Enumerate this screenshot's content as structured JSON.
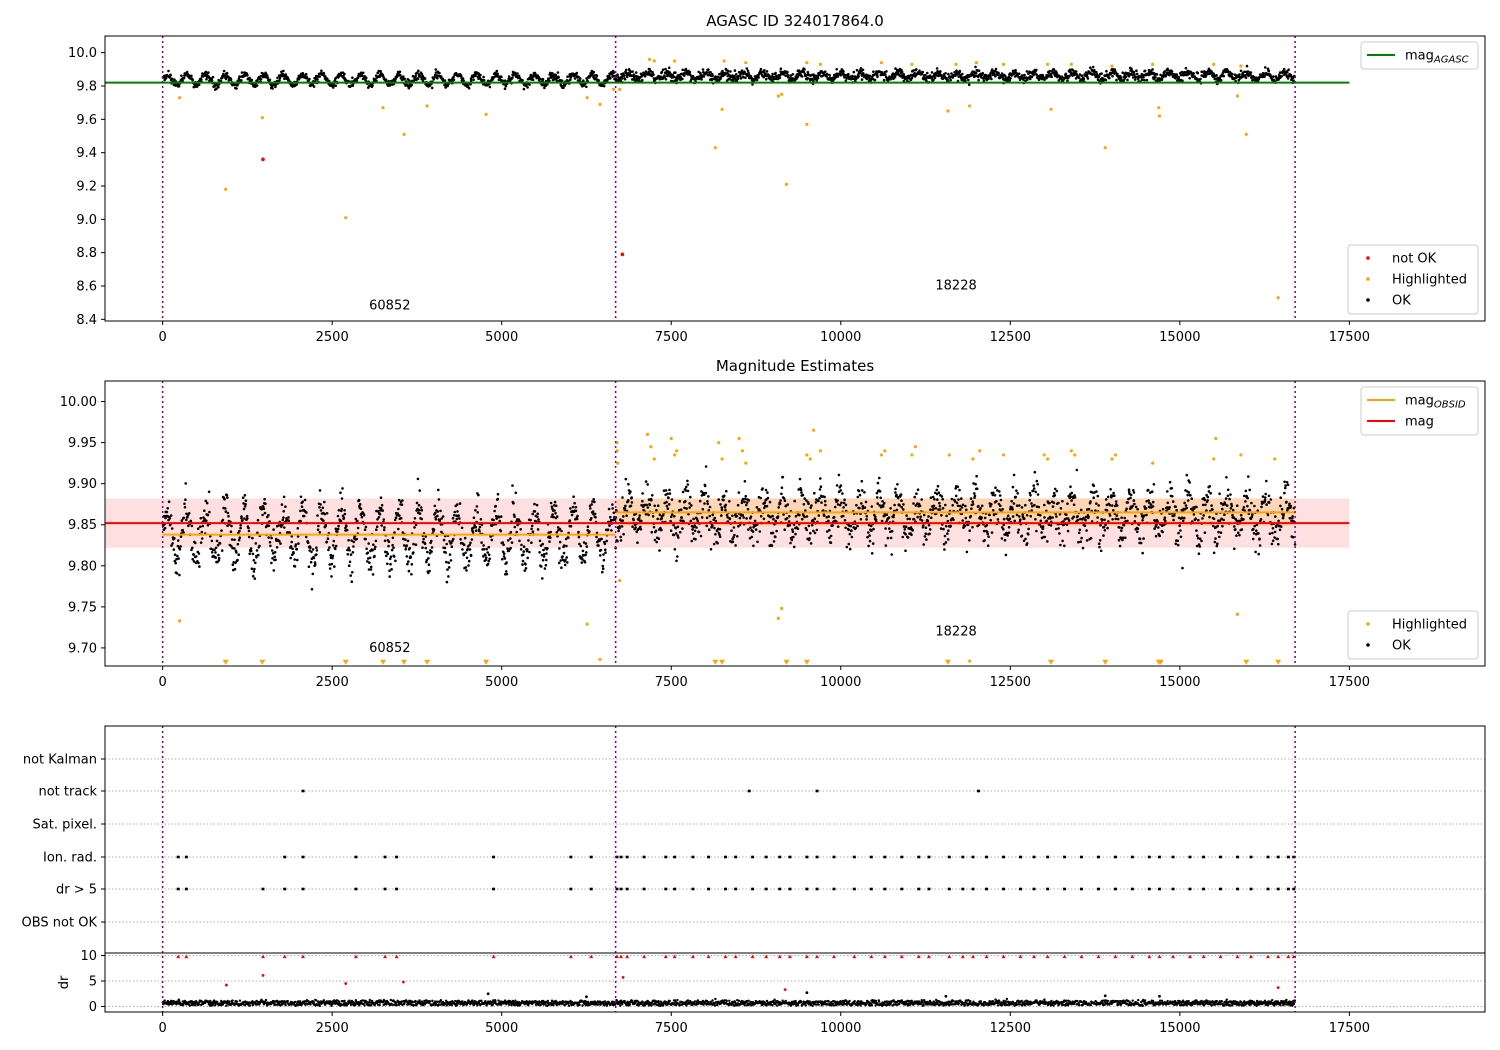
{
  "chart_data": [
    {
      "type": "scatter",
      "title": "AGASC ID 324017864.0",
      "xlim": [
        -850,
        19500
      ],
      "ylim": [
        8.39,
        10.1
      ],
      "xticks": [
        "0",
        "2500",
        "5000",
        "7500",
        "10000",
        "12500",
        "15000",
        "17500"
      ],
      "yticks": [
        "8.4",
        "8.6",
        "8.8",
        "9.0",
        "9.2",
        "9.4",
        "9.6",
        "9.8",
        "10.0"
      ],
      "obsid_boundaries": [
        0,
        6680,
        16700
      ],
      "obsid_labels": [
        {
          "text": "60852",
          "x": 3350,
          "y": 8.46
        },
        {
          "text": "18228",
          "x": 11700,
          "y": 8.58
        }
      ],
      "lines": [
        {
          "name": "mag_AGASC",
          "x": [
            -850,
            17500
          ],
          "y": [
            9.82,
            9.82
          ],
          "color": "#008000"
        }
      ],
      "legends": [
        {
          "position": "top-right",
          "entries": [
            {
              "label": "mag",
              "sub": "AGASC",
              "kind": "line",
              "color": "#008000"
            }
          ]
        },
        {
          "position": "lower-right",
          "entries": [
            {
              "label": "not OK",
              "kind": "dot",
              "color": "#ff0000"
            },
            {
              "label": "Highlighted",
              "kind": "dot",
              "color": "#ffa500"
            },
            {
              "label": "OK",
              "kind": "dot",
              "color": "#000000"
            }
          ]
        }
      ],
      "series": [
        {
          "label": "OK",
          "color": "#000000",
          "segments": [
            {
              "x0": 0,
              "x1": 6680,
              "center": 9.838,
              "amp": 0.03,
              "noise": 0.012
            },
            {
              "x0": 6680,
              "x1": 16700,
              "center": 9.862,
              "amp": 0.018,
              "noise": 0.014
            }
          ]
        },
        {
          "label": "Highlighted",
          "color": "#ffa500",
          "x": [
            250,
            930,
            1470,
            2700,
            3250,
            3560,
            3900,
            4770,
            6260,
            6450,
            6650,
            6740,
            8150,
            8250,
            9080,
            9130,
            9200,
            9500,
            11580,
            11900,
            13100,
            13900,
            14690,
            14700,
            15850,
            15980,
            16450,
            7180,
            7250,
            7550,
            8280,
            8600,
            9500,
            9700,
            10600,
            11050,
            11700,
            12000,
            12400,
            13050,
            13400,
            14000,
            14600,
            15500,
            15900
          ],
          "y": [
            9.73,
            9.18,
            9.61,
            9.01,
            9.67,
            9.51,
            9.68,
            9.63,
            9.73,
            9.69,
            9.78,
            9.78,
            9.43,
            9.66,
            9.74,
            9.75,
            9.21,
            9.57,
            9.65,
            9.68,
            9.66,
            9.43,
            9.67,
            9.62,
            9.74,
            9.51,
            8.53,
            9.96,
            9.95,
            9.95,
            9.95,
            9.94,
            9.94,
            9.93,
            9.94,
            9.93,
            9.93,
            9.94,
            9.93,
            9.93,
            9.93,
            9.92,
            9.93,
            9.93,
            9.92
          ]
        },
        {
          "label": "not OK",
          "color": "#ff0000",
          "x": [
            1480,
            6780
          ],
          "y": [
            9.36,
            8.79
          ]
        }
      ]
    },
    {
      "type": "scatter",
      "title": "Magnitude Estimates",
      "xlim": [
        -850,
        19500
      ],
      "ylim": [
        9.678,
        10.025
      ],
      "xticks": [
        "0",
        "2500",
        "5000",
        "7500",
        "10000",
        "12500",
        "15000",
        "17500"
      ],
      "yticks": [
        "9.70",
        "9.75",
        "9.80",
        "9.85",
        "9.90",
        "9.95",
        "10.00"
      ],
      "obsid_boundaries": [
        0,
        6680,
        16700
      ],
      "obsid_labels": [
        {
          "text": "60852",
          "x": 3350,
          "y": 9.695
        },
        {
          "text": "18228",
          "x": 11700,
          "y": 9.715
        }
      ],
      "bands": [
        {
          "x0": -850,
          "x1": 17500,
          "y0": 9.822,
          "y1": 9.882,
          "color": "#ff0000",
          "opacity": 0.12
        },
        {
          "x0": 6680,
          "x1": 16700,
          "y0": 9.848,
          "y1": 9.882,
          "color": "#ffa500",
          "opacity": 0.18
        }
      ],
      "lines": [
        {
          "name": "mag_OBSID 60852",
          "x": [
            0,
            6680
          ],
          "y": [
            9.838,
            9.838
          ],
          "color": "#ffa500"
        },
        {
          "name": "mag_OBSID 18228",
          "x": [
            6680,
            16700
          ],
          "y": [
            9.865,
            9.865
          ],
          "color": "#ffa500"
        },
        {
          "name": "mag",
          "x": [
            -850,
            17500
          ],
          "y": [
            9.852,
            9.852
          ],
          "color": "#ff0000"
        }
      ],
      "legends": [
        {
          "position": "top-right",
          "entries": [
            {
              "label": "mag",
              "sub": "OBSID",
              "kind": "line",
              "color": "#ffa500"
            },
            {
              "label": "mag",
              "kind": "line",
              "color": "#ff0000"
            }
          ]
        },
        {
          "position": "lower-right",
          "entries": [
            {
              "label": "Highlighted",
              "kind": "dot",
              "color": "#ffa500"
            },
            {
              "label": "OK",
              "kind": "dot",
              "color": "#000000"
            }
          ]
        }
      ],
      "series": [
        {
          "label": "OK",
          "color": "#000000",
          "segments": [
            {
              "x0": 0,
              "x1": 6680,
              "center": 9.838,
              "amp": 0.03,
              "noise": 0.012
            },
            {
              "x0": 6680,
              "x1": 16700,
              "center": 9.862,
              "amp": 0.018,
              "noise": 0.014
            }
          ]
        },
        {
          "label": "Highlighted",
          "color": "#ffa500",
          "x": [
            250,
            6260,
            6450,
            6740,
            9080,
            9130,
            15850,
            11900,
            6700,
            6700,
            6710,
            7150,
            7200,
            7250,
            7500,
            7550,
            7580,
            8200,
            8250,
            8500,
            8550,
            8600,
            9500,
            9550,
            9600,
            9700,
            10600,
            10650,
            11050,
            11100,
            11600,
            11950,
            12050,
            12400,
            13000,
            13050,
            13400,
            13450,
            14000,
            14050,
            14600,
            15500,
            15530,
            15900,
            16400
          ],
          "y": [
            9.733,
            9.729,
            9.686,
            9.782,
            9.736,
            9.748,
            9.741,
            9.684,
            9.94,
            9.95,
            9.925,
            9.96,
            9.945,
            9.93,
            9.955,
            9.935,
            9.94,
            9.95,
            9.93,
            9.955,
            9.94,
            9.925,
            9.935,
            9.93,
            9.965,
            9.94,
            9.935,
            9.94,
            9.935,
            9.945,
            9.935,
            9.93,
            9.94,
            9.935,
            9.935,
            9.93,
            9.94,
            9.935,
            9.93,
            9.935,
            9.925,
            9.93,
            9.955,
            9.935,
            9.93
          ]
        },
        {
          "label": "Highlighted (below range)",
          "color": "#ffa500",
          "marker": "triangle-down",
          "y_at": 9.682,
          "x": [
            930,
            1470,
            2700,
            3250,
            3560,
            3900,
            4770,
            8150,
            8250,
            9200,
            9500,
            11580,
            13100,
            13900,
            14690,
            14720,
            15980,
            16450
          ]
        }
      ]
    },
    {
      "type": "scatter",
      "title": "",
      "xlim": [
        -850,
        19500
      ],
      "xticks": [
        "0",
        "2500",
        "5000",
        "7500",
        "10000",
        "12500",
        "15000",
        "17500"
      ],
      "flag_labels": [
        "not Kalman",
        "not track",
        "Sat. pixel.",
        "Ion. rad.",
        "dr > 5",
        "OBS not OK"
      ],
      "obsid_boundaries": [
        0,
        6680,
        16700
      ],
      "flags": {
        "not track": [
          2070,
          8650,
          9650,
          12030
        ],
        "Ion. rad.": [
          230,
          350,
          1800,
          2070,
          2850,
          3280,
          3450,
          4880,
          6020,
          6320,
          6700,
          6760,
          6850,
          7100,
          7420,
          7550,
          7820,
          8050,
          8300,
          8450,
          8700,
          8900,
          9100,
          9250,
          9500,
          9650,
          9900,
          10200,
          10450,
          10650,
          10900,
          11150,
          11300,
          11600,
          11800,
          11950,
          12150,
          12400,
          12650,
          12850,
          13050,
          13300,
          13550,
          13800,
          14050,
          14300,
          14550,
          14700,
          14900,
          15150,
          15350,
          15600,
          15850,
          16050,
          16300,
          16450,
          16600,
          16680
        ],
        "dr > 5": [
          230,
          350,
          1480,
          1800,
          2070,
          2850,
          3280,
          3450,
          4880,
          6020,
          6320,
          6700,
          6760,
          6850,
          7100,
          7420,
          7550,
          7820,
          8050,
          8300,
          8450,
          8700,
          8900,
          9100,
          9250,
          9500,
          9650,
          9900,
          10200,
          10450,
          10650,
          10900,
          11150,
          11300,
          11600,
          11800,
          11950,
          12150,
          12400,
          12650,
          12850,
          13050,
          13300,
          13550,
          13800,
          14050,
          14300,
          14550,
          14700,
          14900,
          15150,
          15350,
          15600,
          15850,
          16050,
          16300,
          16450,
          16600,
          16680
        ]
      },
      "dr": {
        "ylabel": "dr",
        "yticks": [
          "0",
          "5",
          "10"
        ],
        "ylim": [
          -0.5,
          10.5
        ],
        "typical": [
          0.1,
          1.0
        ],
        "outliers": [
          {
            "x": 940,
            "y": 4.2,
            "color": "#ff0000"
          },
          {
            "x": 1480,
            "y": 6.1,
            "color": "#ff0000"
          },
          {
            "x": 2700,
            "y": 4.5,
            "color": "#ff0000"
          },
          {
            "x": 3550,
            "y": 4.8,
            "color": "#ff0000"
          },
          {
            "x": 6790,
            "y": 5.7,
            "color": "#ff0000"
          },
          {
            "x": 9180,
            "y": 3.3,
            "color": "#ff0000"
          },
          {
            "x": 16450,
            "y": 3.7,
            "color": "#ff0000"
          },
          {
            "x": 4800,
            "y": 2.5,
            "color": "#000000"
          },
          {
            "x": 9500,
            "y": 2.7,
            "color": "#000000"
          },
          {
            "x": 13900,
            "y": 2.1,
            "color": "#000000"
          },
          {
            "x": 14700,
            "y": 2.0,
            "color": "#000000"
          },
          {
            "x": 11550,
            "y": 2.0,
            "color": "#000000"
          },
          {
            "x": 6250,
            "y": 1.9,
            "color": "#000000"
          }
        ],
        "clipped_at": 9.8
      }
    }
  ]
}
